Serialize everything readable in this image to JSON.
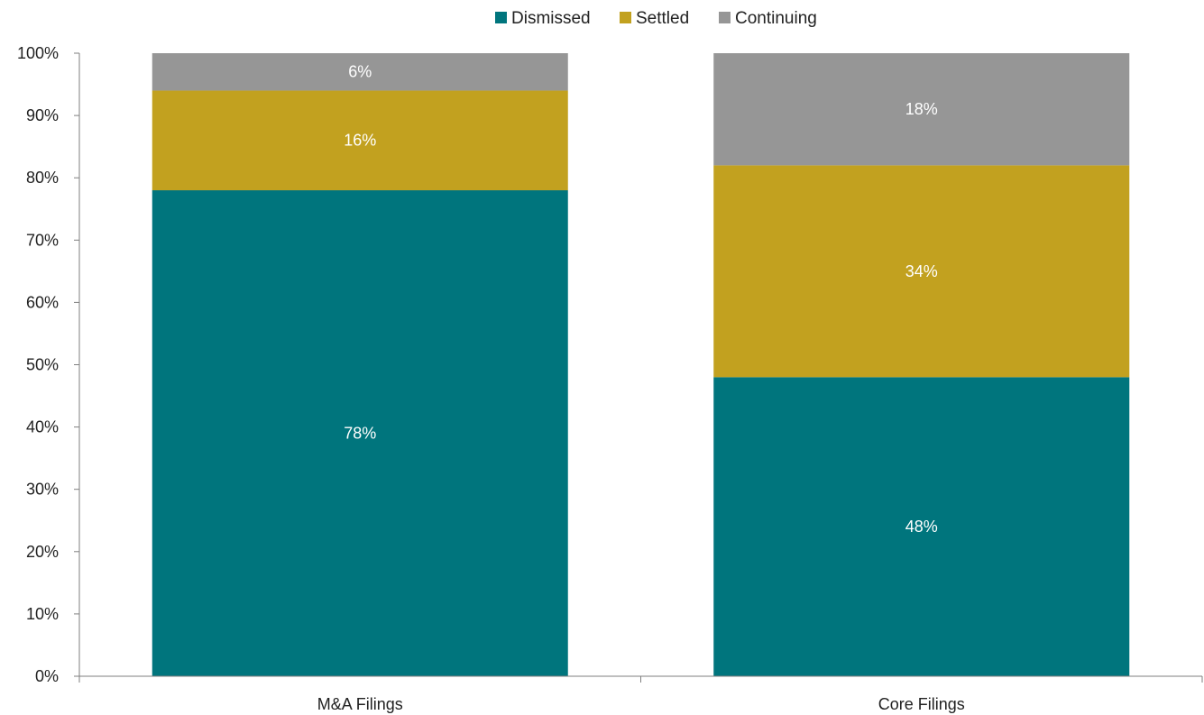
{
  "chart_data": {
    "type": "bar",
    "stacked": true,
    "title": "",
    "xlabel": "",
    "ylabel": "",
    "categories": [
      "M&A Filings",
      "Core Filings"
    ],
    "series": [
      {
        "name": "Dismissed",
        "values": [
          78,
          48
        ],
        "labels": [
          "78%",
          "48%"
        ],
        "color": "#00757d"
      },
      {
        "name": "Settled",
        "values": [
          16,
          34
        ],
        "labels": [
          "16%",
          "34%"
        ],
        "color": "#c2a11f"
      },
      {
        "name": "Continuing",
        "values": [
          6,
          18
        ],
        "labels": [
          "6%",
          "18%"
        ],
        "color": "#969696"
      }
    ],
    "ylim": [
      0,
      100
    ],
    "yticks": [
      0,
      10,
      20,
      30,
      40,
      50,
      60,
      70,
      80,
      90,
      100
    ],
    "ytick_labels": [
      "0%",
      "10%",
      "20%",
      "30%",
      "40%",
      "50%",
      "60%",
      "70%",
      "80%",
      "90%",
      "100%"
    ],
    "grid": false,
    "legend_position": "top-center"
  }
}
